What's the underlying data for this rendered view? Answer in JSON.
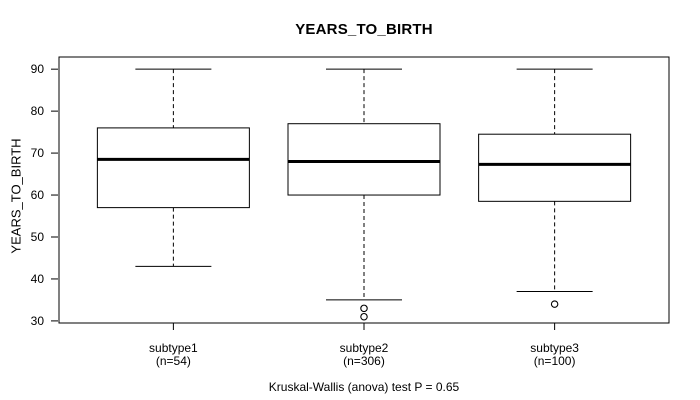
{
  "chart_data": {
    "type": "boxplot",
    "title": "YEARS_TO_BIRTH",
    "ylabel": "YEARS_TO_BIRTH",
    "xlabel": "",
    "ylim": [
      29.5,
      92.9
    ],
    "yticks": [
      30,
      40,
      50,
      60,
      70,
      80,
      90
    ],
    "grid": false,
    "legend": "none",
    "groups": [
      {
        "label": "subtype1",
        "n": 54,
        "n_label": "(n=54)",
        "whisker_low": 43,
        "q1": 57,
        "median": 68.5,
        "q3": 76,
        "whisker_high": 90,
        "outliers": []
      },
      {
        "label": "subtype2",
        "n": 306,
        "n_label": "(n=306)",
        "whisker_low": 35,
        "q1": 60,
        "median": 68,
        "q3": 77,
        "whisker_high": 90,
        "outliers": [
          33,
          31
        ]
      },
      {
        "label": "subtype3",
        "n": 100,
        "n_label": "(n=100)",
        "whisker_low": 37,
        "q1": 58.5,
        "median": 67.3,
        "q3": 74.5,
        "whisker_high": 90,
        "outliers": [
          34
        ]
      }
    ],
    "stat_test": "Kruskal-Wallis (anova) test P = 0.65"
  },
  "colors": {
    "background": "#ffffff",
    "line": "#000000",
    "box_fill": "#ffffff"
  }
}
